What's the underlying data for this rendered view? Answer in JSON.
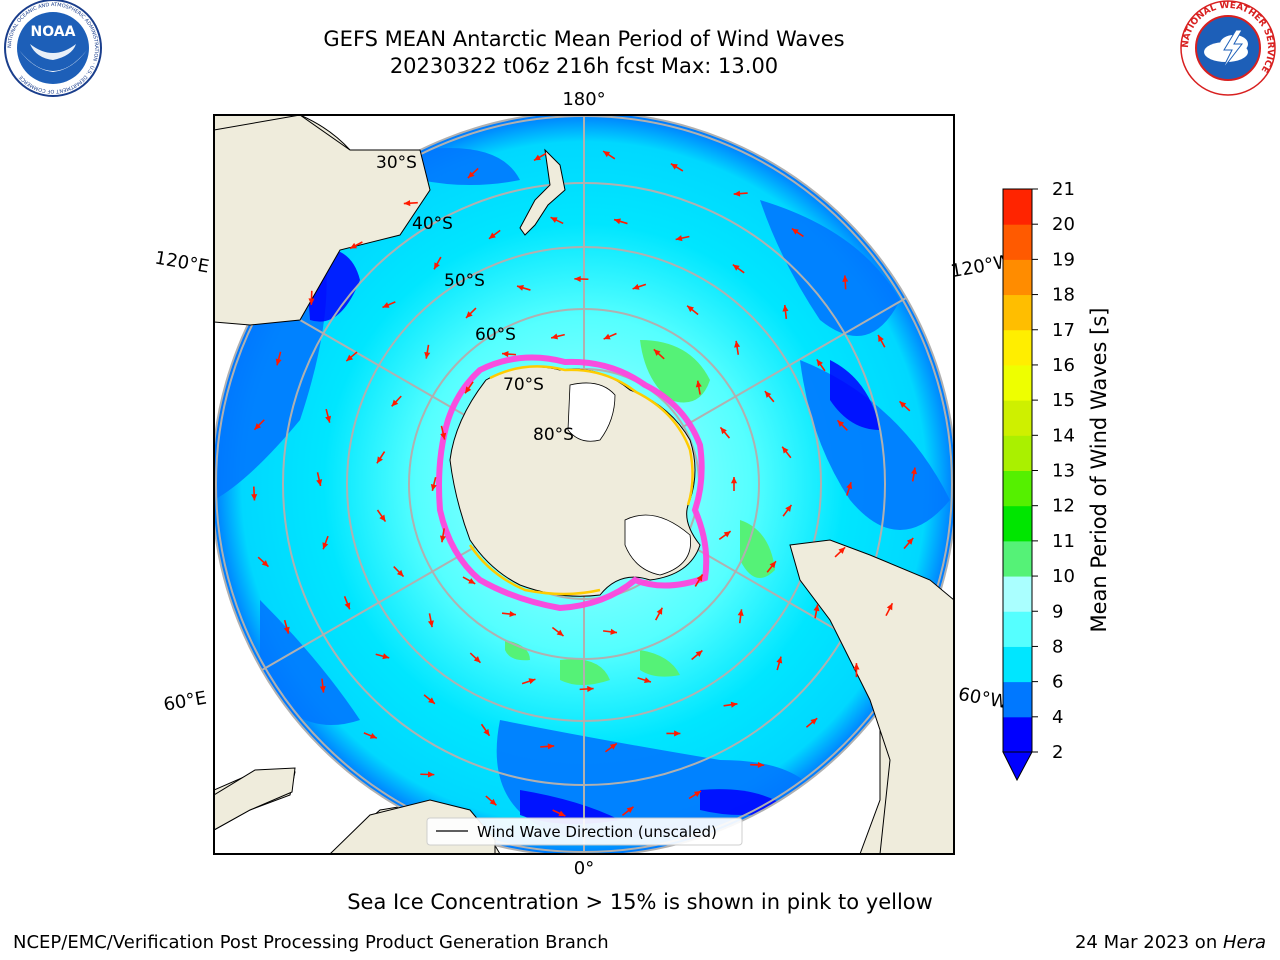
{
  "header": {
    "title_line1": "GEFS MEAN Antarctic Mean Period of Wind Waves",
    "title_line2": "20230322 t06z 216h fcst   Max: 13.00"
  },
  "logos": {
    "left": {
      "name": "noaa-logo",
      "text": "NOAA",
      "ring_text": "NATIONAL OCEANIC AND ATMOSPHERIC ADMINISTRATION · U.S. DEPARTMENT OF COMMERCE"
    },
    "right": {
      "name": "nws-logo",
      "ring_text": "NATIONAL WEATHER SERVICE"
    }
  },
  "map": {
    "projection": "south-polar-stereographic",
    "longitude_labels": {
      "top": "180°",
      "bottom": "0°",
      "upper_left": "120°E",
      "lower_left": "60°E",
      "upper_right": "120°W",
      "lower_right": "60°W"
    },
    "latitude_labels": [
      "30°S",
      "40°S",
      "50°S",
      "60°S",
      "70°S",
      "80°S"
    ],
    "legend_label": "Wind Wave Direction (unscaled)",
    "colors": {
      "land": "#efecdc",
      "ice_edge_pink": "#ff44dd",
      "ice_edge_yellow": "#ffcc00",
      "arrow": "#ff1a00",
      "grid": "#b0b0b0"
    }
  },
  "colorbar": {
    "label": "Mean Period of Wind Waves [s]",
    "ticks": [
      "2",
      "4",
      "6",
      "8",
      "9",
      "10",
      "11",
      "12",
      "13",
      "14",
      "15",
      "16",
      "17",
      "18",
      "19",
      "20",
      "21"
    ],
    "colors": [
      "#0000ff",
      "#0078ff",
      "#00e6ff",
      "#55ffff",
      "#aaffff",
      "#55f277",
      "#00e600",
      "#55f000",
      "#aaf000",
      "#cef000",
      "#eeff00",
      "#ffee00",
      "#ffbe00",
      "#ff8c00",
      "#ff5a00",
      "#ff2400",
      "#ff0000"
    ],
    "extend": "min"
  },
  "annotations": {
    "ice_note": "Sea Ice Concentration > 15% is shown in pink to yellow"
  },
  "footer": {
    "left": "NCEP/EMC/Verification Post Processing Product Generation Branch",
    "right_prefix": "24 Mar 2023 on ",
    "right_host": "Hera"
  }
}
